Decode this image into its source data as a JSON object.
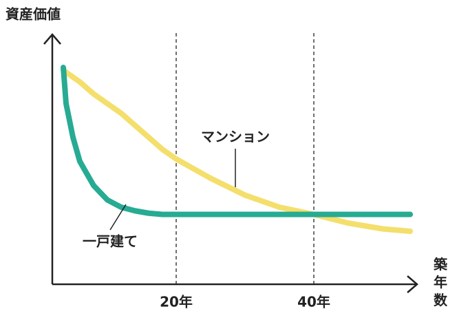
{
  "chart_data": {
    "type": "line",
    "y_label": "資産価値",
    "x_label": "築年数",
    "x": [
      3.6,
      4,
      5,
      6,
      8,
      10,
      12,
      14,
      16,
      18,
      20,
      25,
      30,
      35,
      40,
      45,
      50,
      54
    ],
    "series": [
      {
        "name": "マンション",
        "color": "#f4df6c",
        "values": [
          89,
          88,
          86,
          84,
          79,
          75,
          71,
          66,
          61,
          56,
          52,
          44,
          37,
          32,
          29,
          25.4,
          23,
          22
        ]
      },
      {
        "name": "一戸建て",
        "color": "#27ab93",
        "values": [
          90,
          75,
          61,
          51,
          41,
          35,
          32,
          30.5,
          29.5,
          29,
          29,
          29,
          29,
          29,
          29,
          29,
          29,
          29
        ]
      }
    ],
    "xlim": [
      2,
      54
    ],
    "ylim": [
      0,
      100
    ],
    "xticks": [
      {
        "value": 20,
        "label": "20年"
      },
      {
        "value": 40,
        "label": "40年"
      }
    ],
    "grid": true
  }
}
